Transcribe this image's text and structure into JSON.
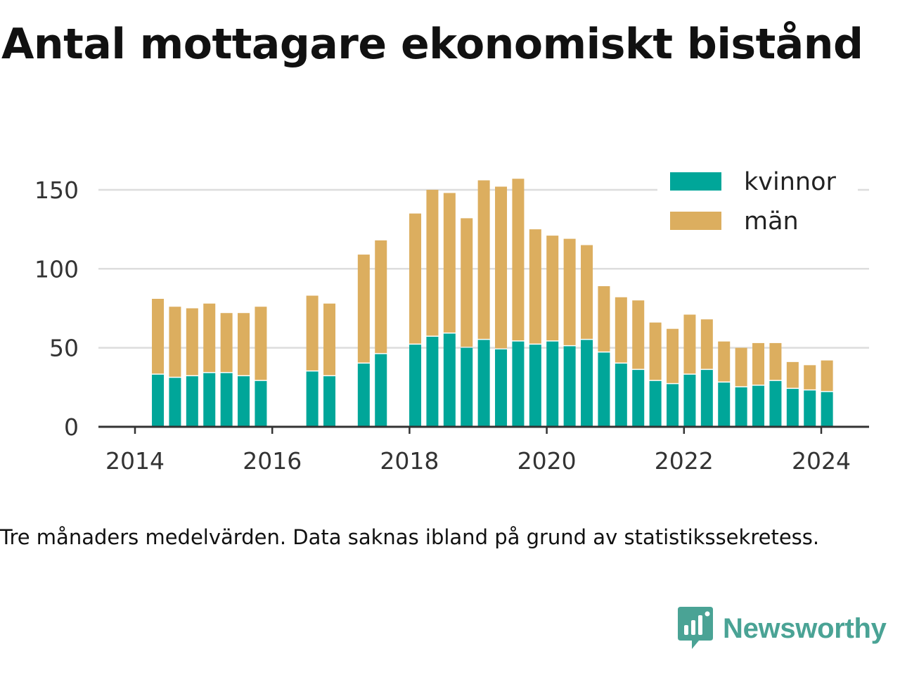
{
  "title": "Antal mottagare ekonomiskt bistånd",
  "caption": "Tre månaders medelvärden. Data saknas ibland på grund av statistikssekretess.",
  "brand": {
    "name": "Newsworthy",
    "icon": "newsworthy-logo-icon",
    "color": "#4aa395"
  },
  "chart_data": {
    "type": "bar",
    "stacked": true,
    "x": [
      "2014-05",
      "2014-08",
      "2014-11",
      "2015-02",
      "2015-05",
      "2015-08",
      "2015-11",
      "2016-08",
      "2016-11",
      "2017-05",
      "2017-08",
      "2018-02",
      "2018-05",
      "2018-08",
      "2018-11",
      "2019-02",
      "2019-05",
      "2019-08",
      "2019-11",
      "2020-02",
      "2020-05",
      "2020-08",
      "2020-11",
      "2021-02",
      "2021-05",
      "2021-08",
      "2021-11",
      "2022-02",
      "2022-05",
      "2022-08",
      "2022-11",
      "2023-02",
      "2023-05",
      "2023-08",
      "2023-11",
      "2024-02"
    ],
    "series": [
      {
        "name": "kvinnor",
        "color": "#00a699",
        "values": [
          33,
          31,
          32,
          34,
          34,
          32,
          29,
          35,
          32,
          40,
          46,
          52,
          57,
          59,
          50,
          55,
          49,
          54,
          52,
          54,
          51,
          55,
          47,
          40,
          36,
          29,
          27,
          33,
          36,
          28,
          25,
          26,
          29,
          24,
          23,
          22
        ]
      },
      {
        "name": "män",
        "color": "#dcae5f",
        "values": [
          48,
          45,
          43,
          44,
          38,
          40,
          47,
          48,
          46,
          69,
          72,
          83,
          93,
          89,
          82,
          101,
          103,
          103,
          73,
          67,
          68,
          60,
          42,
          42,
          44,
          37,
          35,
          38,
          32,
          26,
          25,
          27,
          24,
          17,
          16,
          20
        ]
      }
    ],
    "xticks": [
      "2014",
      "2016",
      "2018",
      "2020",
      "2022",
      "2024"
    ],
    "yticks": [
      0,
      50,
      100,
      150
    ],
    "ylim": [
      0,
      165
    ],
    "grid": true,
    "legend_position": "top-right"
  }
}
